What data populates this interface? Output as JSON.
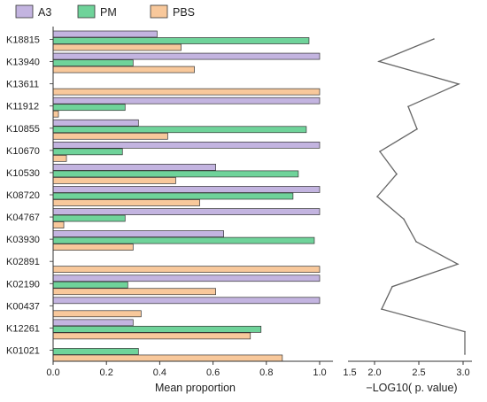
{
  "chart_data": {
    "type": "bar",
    "orientation": "horizontal",
    "categories": [
      "K18815",
      "K13940",
      "K13611",
      "K11912",
      "K10855",
      "K10670",
      "K10530",
      "K08720",
      "K04767",
      "K03930",
      "K02891",
      "K02190",
      "K00437",
      "K12261",
      "K01021"
    ],
    "series": [
      {
        "name": "A3",
        "color": "#c3b4e0",
        "values": [
          0.39,
          1.0,
          0.0,
          1.0,
          0.32,
          1.0,
          0.61,
          1.0,
          1.0,
          0.64,
          0.0,
          1.0,
          1.0,
          0.3,
          0.0
        ]
      },
      {
        "name": "PM",
        "color": "#6fd39a",
        "values": [
          0.96,
          0.3,
          0.0,
          0.27,
          0.95,
          0.26,
          0.92,
          0.9,
          0.27,
          0.98,
          0.0,
          0.28,
          0.0,
          0.78,
          0.32
        ]
      },
      {
        "name": "PBS",
        "color": "#f8c89b",
        "values": [
          0.48,
          0.53,
          1.0,
          0.02,
          0.43,
          0.05,
          0.46,
          0.55,
          0.04,
          0.3,
          1.0,
          0.61,
          0.33,
          0.74,
          0.86
        ]
      }
    ],
    "xlabel": "Mean proportion",
    "xlim": [
      0,
      1.05
    ],
    "xticks": [
      "0.0",
      "0.2",
      "0.4",
      "0.6",
      "0.8",
      "1.0"
    ],
    "xtick_values": [
      0,
      0.2,
      0.4,
      0.6,
      0.8,
      1.0
    ],
    "legend_position": "top",
    "grid": false,
    "line_panel": {
      "type": "line",
      "xlabel": "−LOG10( p. value)",
      "xlim": [
        1.7,
        3.1
      ],
      "xticks": [
        "1.5",
        "2.0",
        "2.5",
        "3.0"
      ],
      "xtick_values": [
        1.5,
        2.0,
        2.5,
        3.0
      ],
      "line_color": "#666666",
      "values": [
        2.67,
        2.05,
        2.95,
        2.38,
        2.48,
        2.06,
        2.25,
        2.03,
        2.33,
        2.47,
        2.94,
        2.2,
        2.08,
        3.02,
        3.02
      ]
    }
  }
}
